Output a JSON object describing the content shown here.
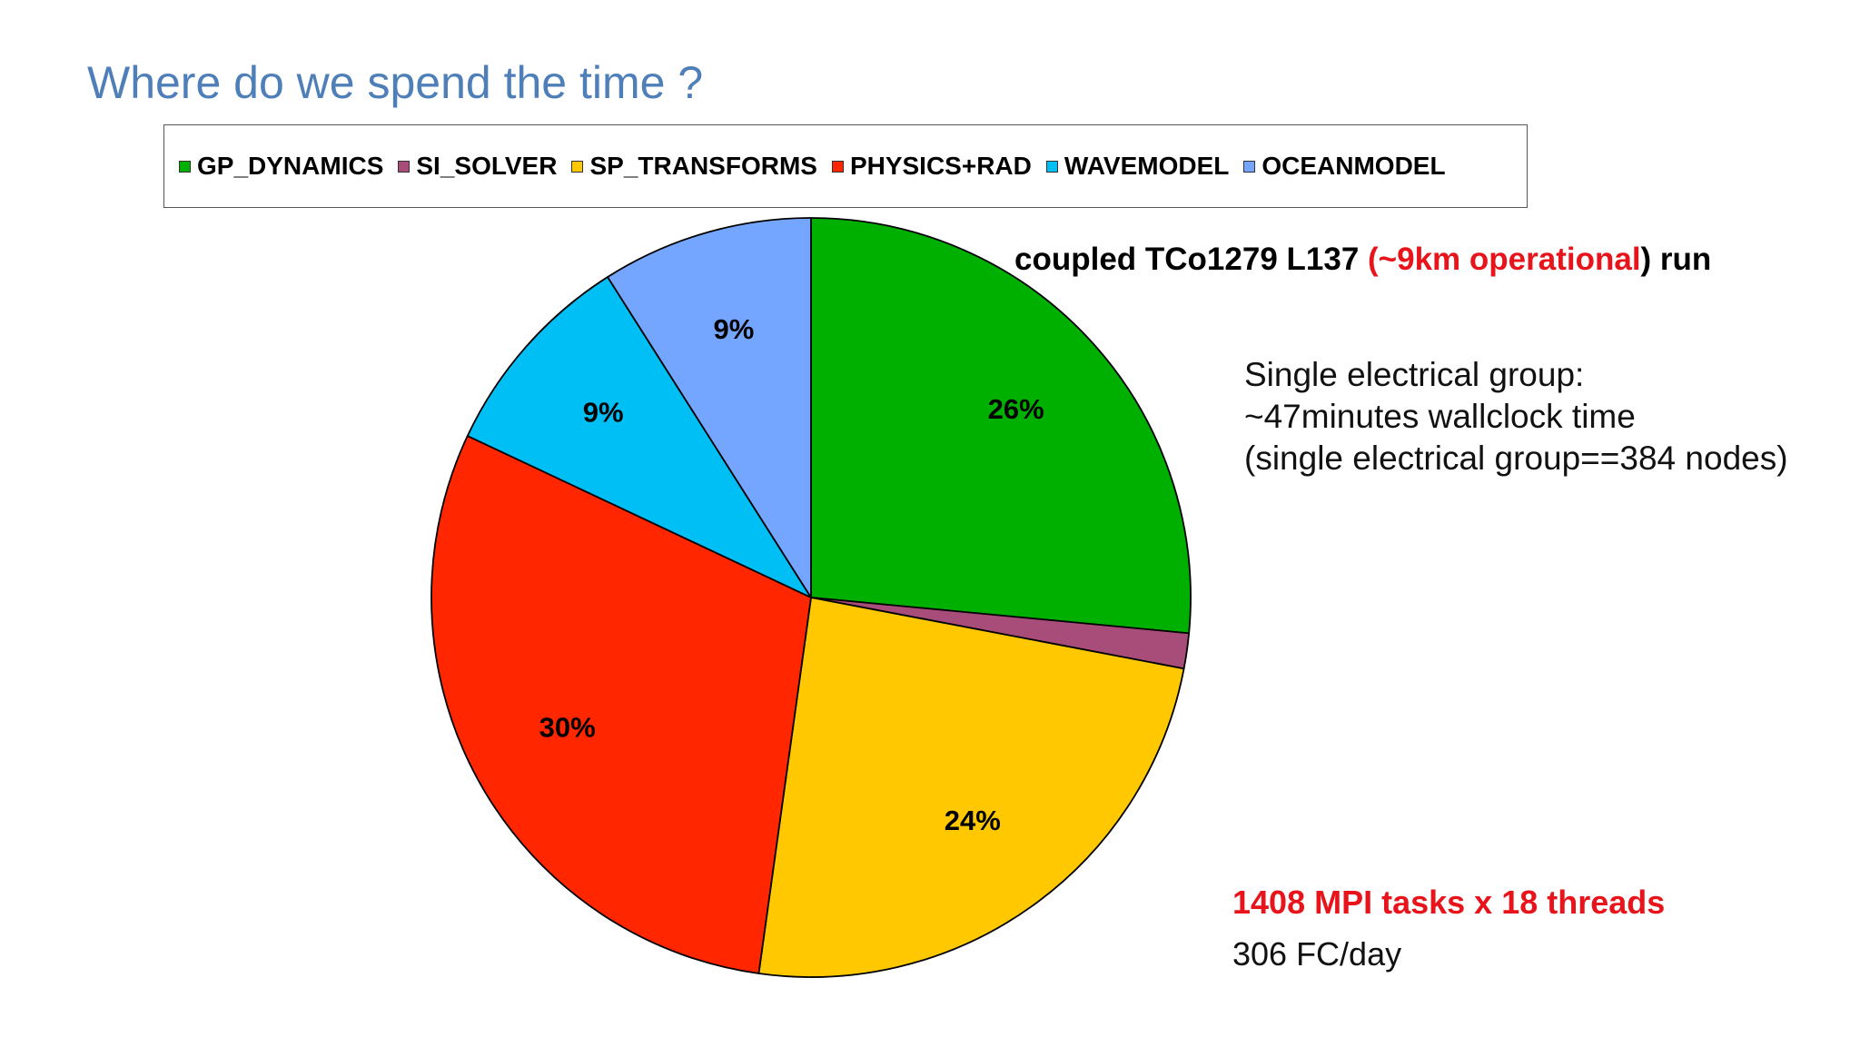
{
  "slide": {
    "title": "Where do we spend the time ?"
  },
  "run_title": {
    "part1": "coupled TCo1279 L137 ",
    "part_red": "(~9km operational",
    "part2": ") run"
  },
  "info": {
    "line1": "Single electrical group:",
    "line2": "~47minutes wallclock time",
    "line3": "(single electrical group==384 nodes)"
  },
  "mpi": {
    "tasks": "1408 MPI tasks x 18 threads",
    "fc_per_day": "306 FC/day"
  },
  "colors": {
    "GP_DYNAMICS": "#00b000",
    "SI_SOLVER": "#a84c7a",
    "SP_TRANSFORMS": "#ffc800",
    "PHYSICS+RAD": "#ff2600",
    "WAVEMODEL": "#00bff5",
    "OCEANMODEL": "#75a6ff",
    "title": "#4f7fb8",
    "highlight_red": "#e8141b"
  },
  "chart_data": {
    "type": "pie",
    "legend_position": "top",
    "slices": [
      {
        "name": "GP_DYNAMICS",
        "value": 26.5,
        "label": "26%",
        "color": "#00b000"
      },
      {
        "name": "SI_SOLVER",
        "value": 1.5,
        "label": "",
        "color": "#a84c7a"
      },
      {
        "name": "SP_TRANSFORMS",
        "value": 24.2,
        "label": "24%",
        "color": "#ffc800"
      },
      {
        "name": "PHYSICS+RAD",
        "value": 29.8,
        "label": "30%",
        "color": "#ff2600"
      },
      {
        "name": "WAVEMODEL",
        "value": 9.0,
        "label": "9%",
        "color": "#00bff5"
      },
      {
        "name": "OCEANMODEL",
        "value": 9.0,
        "label": "9%",
        "color": "#75a6ff"
      }
    ]
  }
}
